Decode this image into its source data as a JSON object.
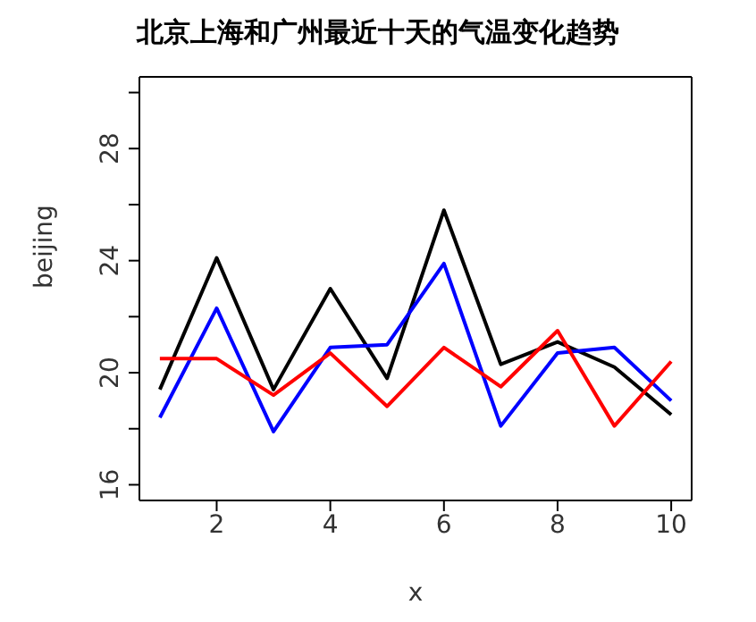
{
  "chart_data": {
    "type": "line",
    "title": "北京上海和广州最近十天的气温变化趋势",
    "xlabel": "x",
    "ylabel": "beijing",
    "x": [
      1,
      2,
      3,
      4,
      5,
      6,
      7,
      8,
      9,
      10
    ],
    "series": [
      {
        "color": "#000000",
        "values": [
          19.4,
          24.1,
          19.4,
          23.0,
          19.8,
          25.8,
          20.3,
          21.1,
          20.2,
          18.5
        ]
      },
      {
        "color": "#0000ff",
        "values": [
          18.4,
          22.3,
          17.9,
          20.9,
          21.0,
          23.9,
          18.1,
          20.7,
          20.9,
          19.0
        ]
      },
      {
        "color": "#ff0000",
        "values": [
          20.5,
          20.5,
          19.2,
          20.7,
          18.8,
          20.9,
          19.5,
          21.5,
          18.1,
          20.4
        ]
      }
    ],
    "xlim": [
      0.64,
      10.36
    ],
    "xticks": [
      2,
      4,
      6,
      8,
      10
    ],
    "ylim": [
      15.44,
      30.56
    ],
    "yticks": [
      16,
      {
        "value": 18,
        "label": null
      },
      20,
      {
        "value": 22,
        "label": null
      },
      24,
      {
        "value": 26,
        "label": null
      },
      28,
      {
        "value": 30,
        "label": null
      }
    ],
    "grid": false,
    "legend": false,
    "marker": "none",
    "line_style": "solid"
  }
}
